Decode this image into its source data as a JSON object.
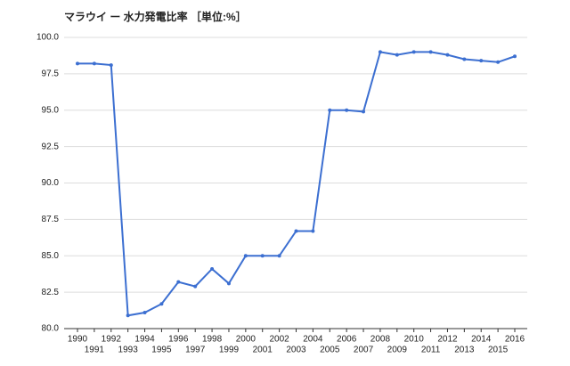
{
  "chart_data": {
    "type": "line",
    "title": "マラウイ ー 水力発電比率 ［単位:%］",
    "x": [
      1990,
      1991,
      1992,
      1993,
      1994,
      1995,
      1996,
      1997,
      1998,
      1999,
      2000,
      2001,
      2002,
      2003,
      2004,
      2005,
      2006,
      2007,
      2008,
      2009,
      2010,
      2011,
      2012,
      2013,
      2014,
      2015,
      2016
    ],
    "series": [
      {
        "name": "水力発電比率",
        "color": "#3c6fd1",
        "values": [
          98.2,
          98.2,
          98.1,
          80.9,
          81.1,
          81.7,
          83.2,
          82.9,
          84.1,
          83.1,
          85.0,
          85.0,
          85.0,
          86.7,
          86.7,
          95.0,
          95.0,
          94.9,
          99.0,
          98.8,
          99.0,
          99.0,
          98.8,
          98.5,
          98.4,
          98.3,
          98.7
        ]
      }
    ],
    "xlim": [
      1990,
      2016
    ],
    "xticks": [
      1990,
      1991,
      1992,
      1993,
      1994,
      1995,
      1996,
      1997,
      1998,
      1999,
      2000,
      2001,
      2002,
      2003,
      2004,
      2005,
      2006,
      2007,
      2008,
      2009,
      2010,
      2011,
      2012,
      2013,
      2014,
      2015,
      2016
    ],
    "ylim": [
      80,
      100
    ],
    "yticks": [
      {
        "value": 80,
        "label": "80.0"
      },
      {
        "value": 82.5,
        "label": "82.5"
      },
      {
        "value": 85,
        "label": "85.0"
      },
      {
        "value": 87.5,
        "label": "87.5"
      },
      {
        "value": 90,
        "label": "90.0"
      },
      {
        "value": 92.5,
        "label": "92.5"
      },
      {
        "value": 95,
        "label": "95.0"
      },
      {
        "value": 97.5,
        "label": "97.5"
      },
      {
        "value": 100,
        "label": "100.0"
      }
    ],
    "grid": true
  }
}
